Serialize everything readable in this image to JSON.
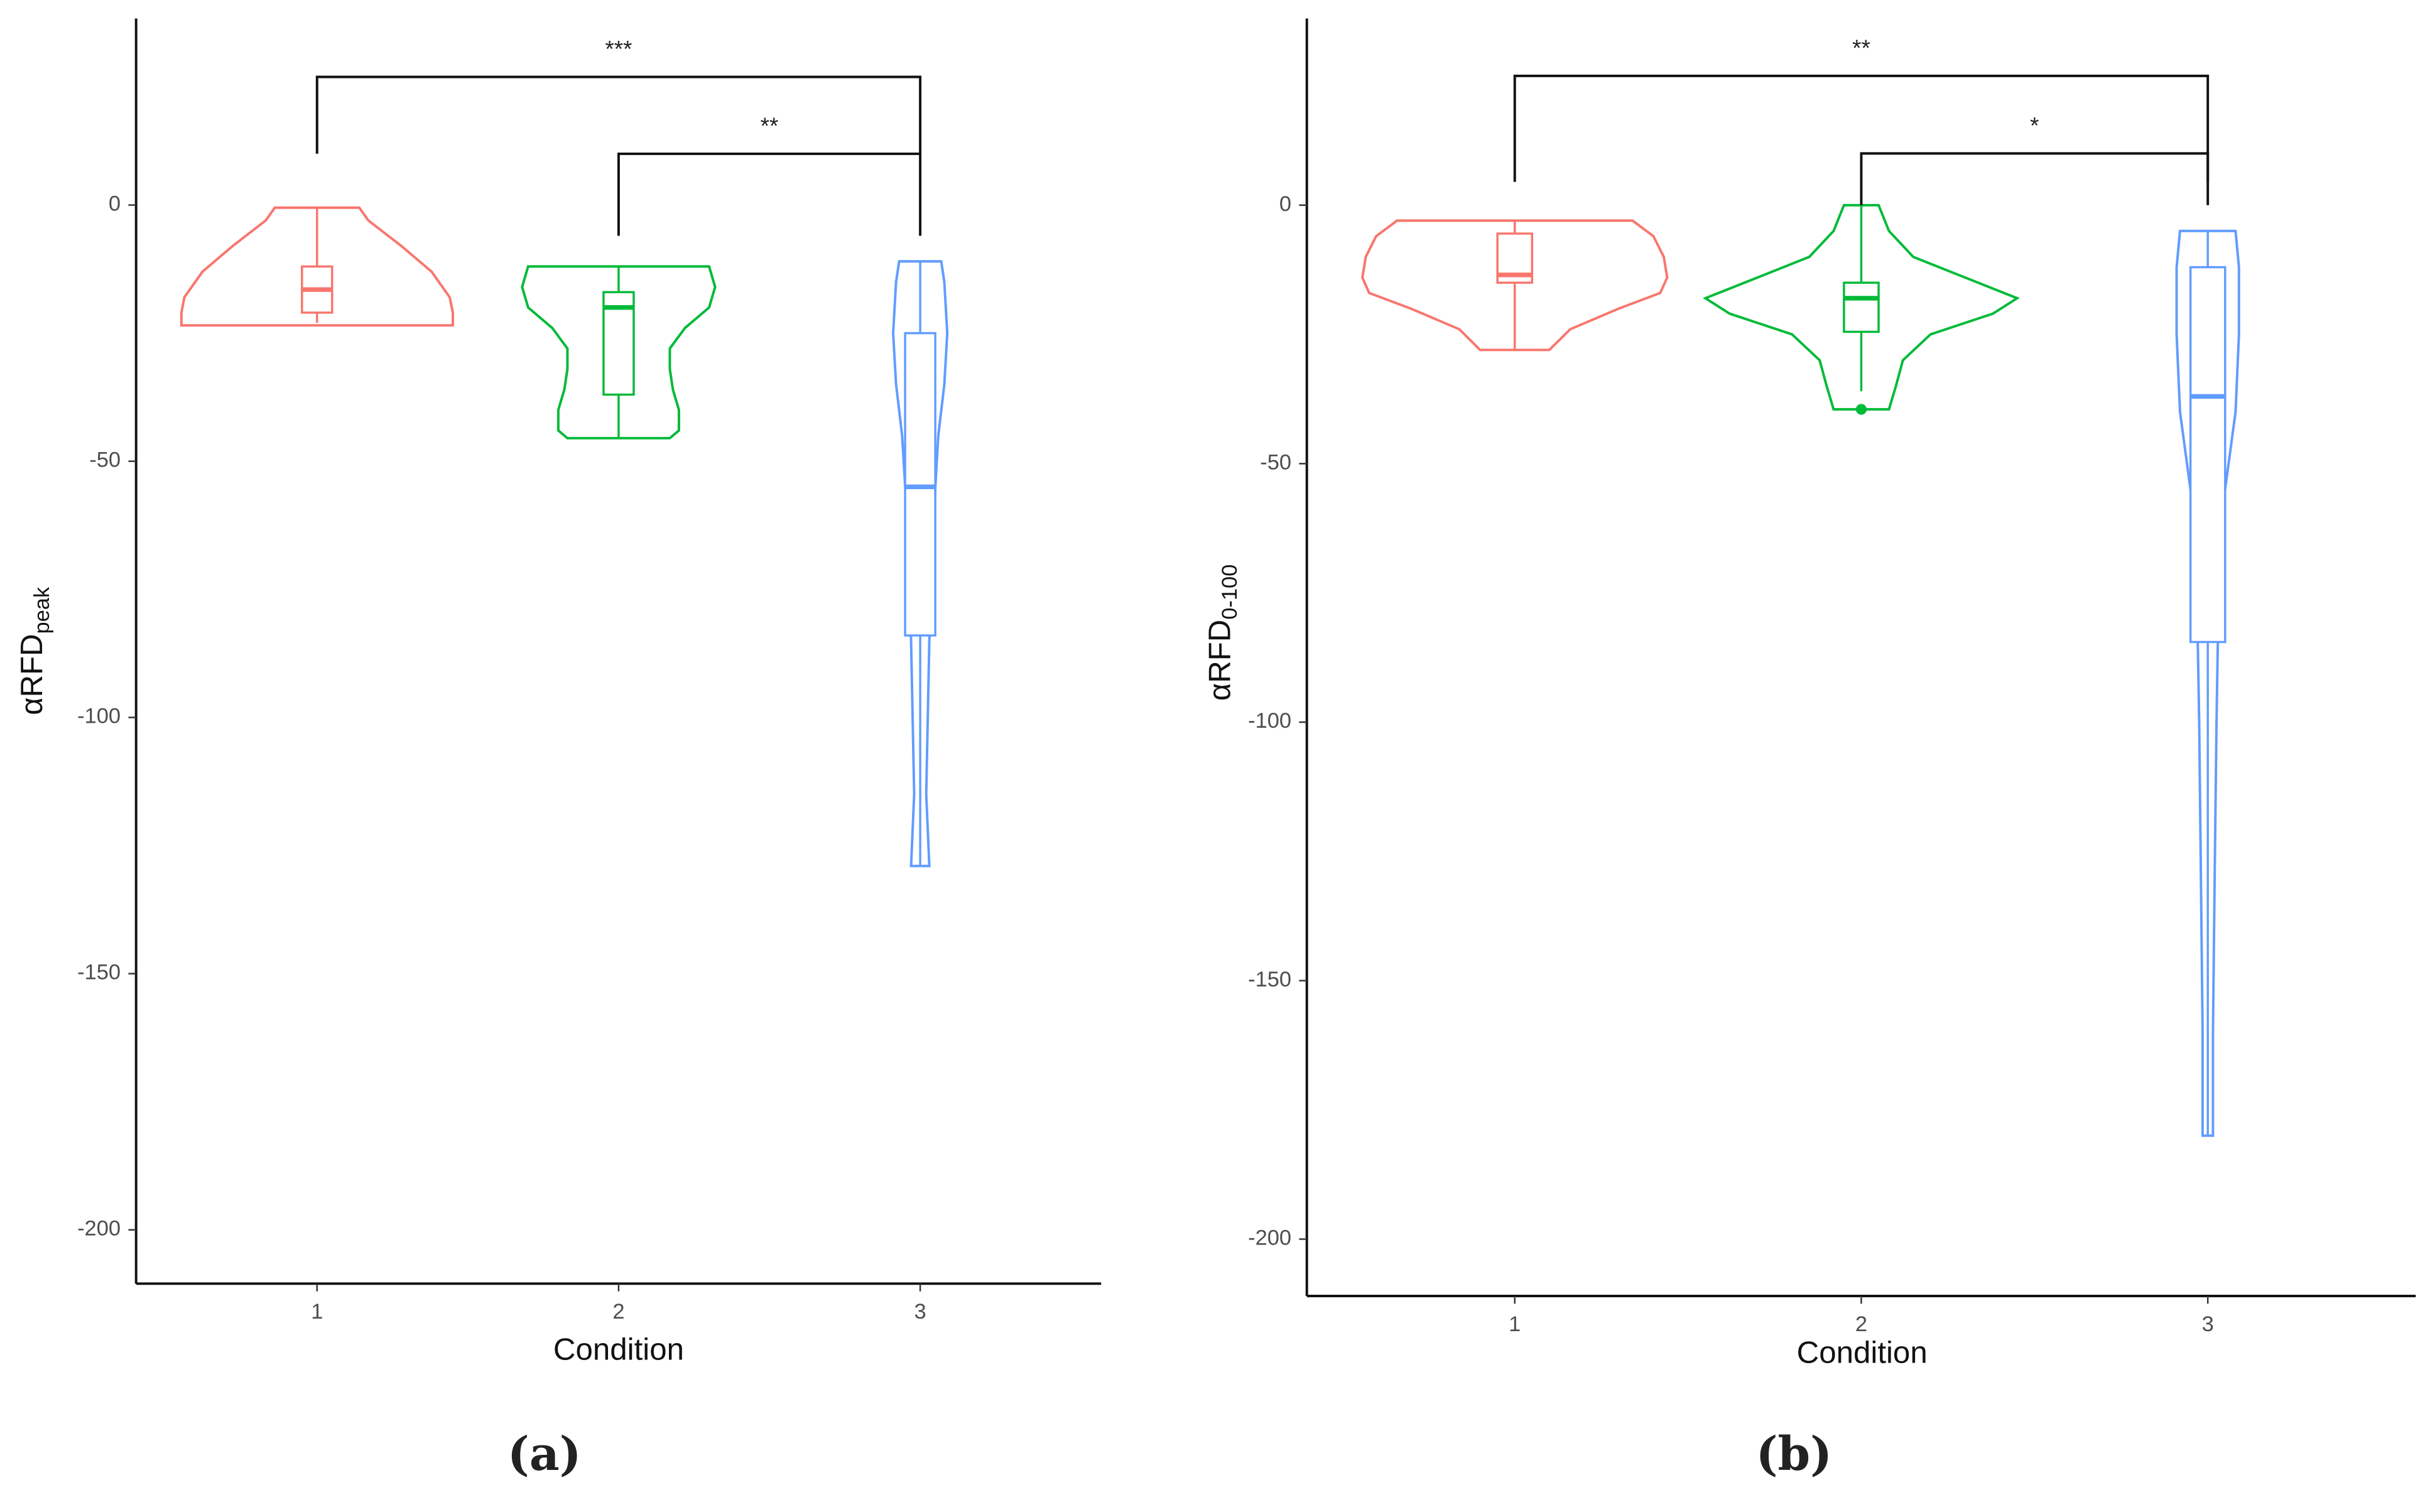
{
  "chart_data": [
    {
      "type": "violin",
      "caption": "(a)",
      "xlabel": "Condition",
      "ylabel": "αRFD",
      "ylabel_sub": "peak",
      "xlim": [
        0.4,
        3.6
      ],
      "xticks": [
        1,
        2,
        3
      ],
      "ylim": [
        -210.5,
        36.4
      ],
      "yticks": [
        -200,
        -150,
        -100,
        -50,
        0
      ],
      "series": [
        {
          "x": 1,
          "color": "#F8766D",
          "violin_y": [
            -0.5,
            -3,
            -8,
            -13,
            -18,
            -21,
            -23.5
          ],
          "violin_halfwidth": [
            0.14,
            0.17,
            0.28,
            0.38,
            0.44,
            0.45,
            0.45
          ],
          "box": {
            "min": -23,
            "q1": -21,
            "median": -16.5,
            "q3": -12,
            "max": -0.5
          }
        },
        {
          "x": 2,
          "color": "#00BA38",
          "violin_y": [
            -12,
            -16,
            -20,
            -24,
            -28,
            -32,
            -36,
            -40,
            -44,
            -45.5
          ],
          "violin_halfwidth": [
            0.3,
            0.32,
            0.3,
            0.22,
            0.17,
            0.17,
            0.18,
            0.2,
            0.2,
            0.17
          ],
          "box": {
            "min": -45.5,
            "q1": -37,
            "median": -20,
            "q3": -17,
            "max": -12
          }
        },
        {
          "x": 3,
          "color": "#619CFF",
          "violin_y": [
            -11,
            -15,
            -25,
            -35,
            -45,
            -55,
            -70,
            -85,
            -100,
            -115,
            -129
          ],
          "violin_halfwidth": [
            0.07,
            0.08,
            0.09,
            0.08,
            0.06,
            0.05,
            0.04,
            0.03,
            0.025,
            0.02,
            0.03
          ],
          "box": {
            "min": -129,
            "q1": -84,
            "median": -55,
            "q3": -25,
            "max": -11
          }
        }
      ],
      "brackets": [
        {
          "x": [
            1,
            3
          ],
          "y": 25,
          "tips": [
            10,
            10
          ],
          "label": "***"
        },
        {
          "x": [
            2,
            3
          ],
          "y": 10,
          "tips": [
            -6,
            -6
          ],
          "label": "**"
        }
      ]
    },
    {
      "type": "violin",
      "caption": "(b)",
      "xlabel": "Condition",
      "ylabel": "αRFD",
      "ylabel_sub": "0-100",
      "xlim": [
        0.4,
        3.6
      ],
      "xticks": [
        1,
        2,
        3
      ],
      "ylim": [
        -211,
        36.1
      ],
      "yticks": [
        -200,
        -150,
        -100,
        -50,
        0
      ],
      "series": [
        {
          "x": 1,
          "color": "#F8766D",
          "violin_y": [
            -3,
            -6,
            -10,
            -14,
            -17,
            -20,
            -24,
            -28
          ],
          "violin_halfwidth": [
            0.34,
            0.4,
            0.43,
            0.44,
            0.42,
            0.3,
            0.16,
            0.1
          ],
          "box": {
            "min": -28,
            "q1": -15,
            "median": -13.5,
            "q3": -5.5,
            "max": -3
          }
        },
        {
          "x": 2,
          "color": "#00BA38",
          "violin_y": [
            0,
            -5,
            -10,
            -14,
            -18,
            -21,
            -25,
            -30,
            -35,
            -39.5
          ],
          "violin_halfwidth": [
            0.05,
            0.08,
            0.15,
            0.3,
            0.45,
            0.38,
            0.2,
            0.12,
            0.1,
            0.08
          ],
          "box": {
            "min": -36,
            "q1": -24.5,
            "median": -18,
            "q3": -15,
            "max": 0
          },
          "outliers": [
            -39.5
          ]
        },
        {
          "x": 3,
          "color": "#619CFF",
          "violin_y": [
            -5,
            -12,
            -25,
            -40,
            -50,
            -60,
            -80,
            -100,
            -130,
            -160,
            -180
          ],
          "violin_halfwidth": [
            0.08,
            0.09,
            0.09,
            0.08,
            0.06,
            0.04,
            0.03,
            0.025,
            0.02,
            0.015,
            0.015
          ],
          "box": {
            "min": -180,
            "q1": -84.5,
            "median": -37,
            "q3": -12,
            "max": -5
          }
        }
      ],
      "brackets": [
        {
          "x": [
            1,
            3
          ],
          "y": 25,
          "tips": [
            4.5,
            4.5
          ],
          "label": "**"
        },
        {
          "x": [
            2,
            3
          ],
          "y": 10,
          "tips": [
            0,
            0
          ],
          "label": "*"
        }
      ]
    }
  ]
}
